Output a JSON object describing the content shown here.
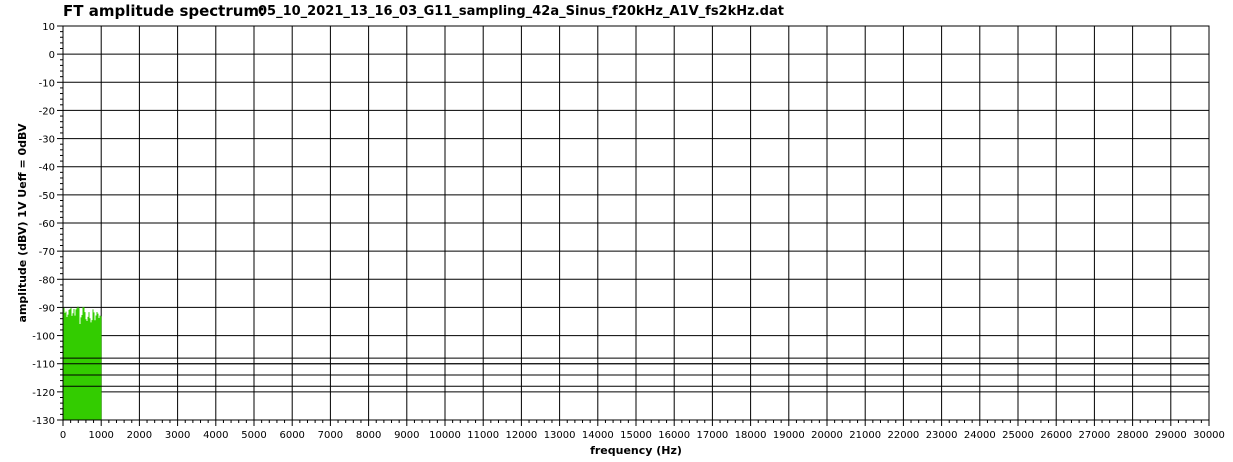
{
  "header": {
    "title": "FT amplitude spectrum:",
    "filename": "05_10_2021_13_16_03_G11_sampling_42a_Sinus_f20kHz_A1V_fs2kHz.dat"
  },
  "chart_data": {
    "type": "area",
    "title": "FT amplitude spectrum:",
    "subtitle": "05_10_2021_13_16_03_G11_sampling_42a_Sinus_f20kHz_A1V_fs2kHz.dat",
    "xlabel": "frequency (Hz)",
    "ylabel": "amplitude (dBV) 1V Ueff = 0dBV",
    "xlim": [
      0,
      30000
    ],
    "ylim": [
      -130,
      10
    ],
    "x_ticks": [
      0,
      1000,
      2000,
      3000,
      4000,
      5000,
      6000,
      7000,
      8000,
      9000,
      10000,
      11000,
      12000,
      13000,
      14000,
      15000,
      16000,
      17000,
      18000,
      19000,
      20000,
      21000,
      22000,
      23000,
      24000,
      25000,
      26000,
      27000,
      28000,
      29000,
      30000
    ],
    "y_ticks": [
      10,
      0,
      -10,
      -20,
      -30,
      -40,
      -50,
      -60,
      -70,
      -80,
      -90,
      -100,
      -110,
      -120,
      -130
    ],
    "grid": true,
    "reference_lines_y": [
      -108,
      -110,
      -114,
      -118
    ],
    "series": [
      {
        "color": "#33cc00",
        "x_range": [
          0,
          1000
        ],
        "approx_upper_envelope_dbv": [
          -94,
          -90,
          -93,
          -92,
          -88,
          -95,
          -91,
          -93,
          -89,
          -96,
          -92,
          -90,
          -94,
          -93,
          -91,
          -95,
          -92,
          -94,
          -90,
          -96,
          -93
        ],
        "floor_dbv": -130
      }
    ]
  }
}
